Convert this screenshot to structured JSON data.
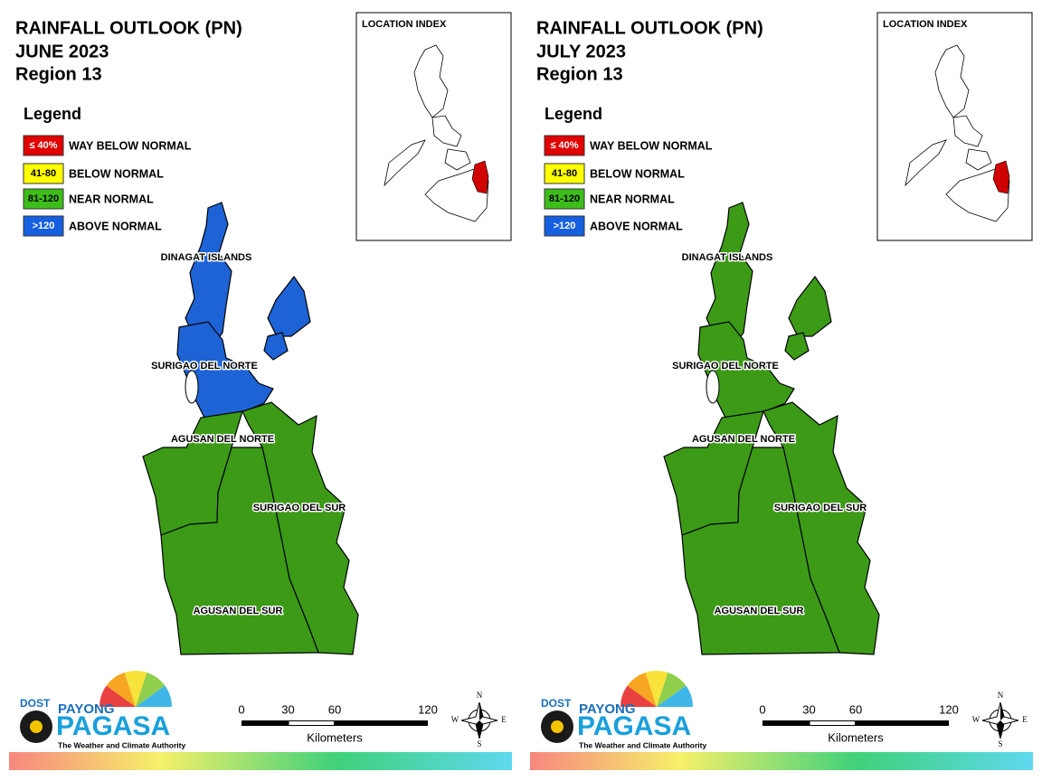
{
  "panels": [
    {
      "title": [
        "RAINFALL OUTLOOK (PN)",
        "JUNE 2023",
        "Region 13"
      ],
      "legend_title": "Legend",
      "legend": [
        {
          "range": "≤ 40%",
          "label": "WAY BELOW NORMAL",
          "color": "#e00000"
        },
        {
          "range": "41-80",
          "label": "BELOW NORMAL",
          "color": "#ffff00"
        },
        {
          "range": "81-120",
          "label": "NEAR NORMAL",
          "color": "#3dbd1a"
        },
        {
          "range": ">120",
          "label": "ABOVE NORMAL",
          "color": "#1560e0"
        }
      ],
      "location_index": "LOCATION INDEX",
      "provinces": [
        {
          "name": "DINAGAT ISLANDS",
          "color": "#1e63d6"
        },
        {
          "name": "SURIGAO DEL NORTE",
          "color": "#1e63d6"
        },
        {
          "name": "AGUSAN DEL NORTE",
          "color": "#3c9a17"
        },
        {
          "name": "SURIGAO DEL SUR",
          "color": "#3c9a17"
        },
        {
          "name": "AGUSAN DEL SUR",
          "color": "#3c9a17"
        }
      ],
      "logo": {
        "agency": "DOST",
        "brand_top": "PAYONG",
        "brand": "PAGASA",
        "tagline": "The Weather and Climate Authority"
      },
      "scale": {
        "ticks": [
          0,
          30,
          60,
          120
        ],
        "unit": "Kilometers"
      },
      "compass": {
        "n": "N",
        "e": "E",
        "s": "S",
        "w": "W"
      }
    },
    {
      "title": [
        "RAINFALL OUTLOOK (PN)",
        "JULY 2023",
        "Region 13"
      ],
      "legend_title": "Legend",
      "legend": [
        {
          "range": "≤ 40%",
          "label": "WAY BELOW NORMAL",
          "color": "#e00000"
        },
        {
          "range": "41-80",
          "label": "BELOW NORMAL",
          "color": "#ffff00"
        },
        {
          "range": "81-120",
          "label": "NEAR NORMAL",
          "color": "#3dbd1a"
        },
        {
          "range": ">120",
          "label": "ABOVE NORMAL",
          "color": "#1560e0"
        }
      ],
      "location_index": "LOCATION INDEX",
      "provinces": [
        {
          "name": "DINAGAT ISLANDS",
          "color": "#3c9a17"
        },
        {
          "name": "SURIGAO DEL NORTE",
          "color": "#3c9a17"
        },
        {
          "name": "AGUSAN DEL NORTE",
          "color": "#3c9a17"
        },
        {
          "name": "SURIGAO DEL SUR",
          "color": "#3c9a17"
        },
        {
          "name": "AGUSAN DEL SUR",
          "color": "#3c9a17"
        }
      ],
      "logo": {
        "agency": "DOST",
        "brand_top": "PAYONG",
        "brand": "PAGASA",
        "tagline": "The Weather and Climate Authority"
      },
      "scale": {
        "ticks": [
          0,
          30,
          60,
          120
        ],
        "unit": "Kilometers"
      },
      "compass": {
        "n": "N",
        "e": "E",
        "s": "S",
        "w": "W"
      }
    }
  ]
}
